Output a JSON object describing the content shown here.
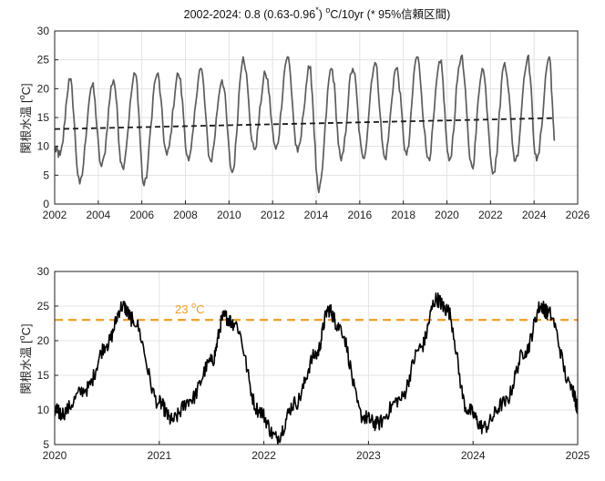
{
  "chart_data": [
    {
      "type": "line",
      "title": "2002-2024: 0.8 (0.63-0.96* ºC/10yr (* 95%信頼区間)",
      "title_parts": {
        "prefix": "2002-2024: 0.8 (0.63-0.96",
        "star": "*",
        "mid": ") ",
        "deg": "o",
        "suffix": "C/10yr (* 95%信頼区間)"
      },
      "ylabel": "関根水温 [ºC]",
      "ylabel_parts": {
        "main": "関根水温 [",
        "deg": "o",
        "end": "C]"
      },
      "xlim": [
        2002,
        2026
      ],
      "ylim": [
        0,
        30
      ],
      "xticks": [
        "2002",
        "2004",
        "2006",
        "2008",
        "2010",
        "2012",
        "2014",
        "2016",
        "2018",
        "2020",
        "2022",
        "2024",
        "2026"
      ],
      "yticks": [
        "0",
        "5",
        "10",
        "15",
        "20",
        "25",
        "30"
      ],
      "grid": true,
      "line_color": "#5c5c5c",
      "trend_color": "#1a1a1a",
      "series": [
        {
          "kind": "seasonal_extrema",
          "x": [
            2002.0,
            2002.25,
            2002.7,
            2003.15,
            2003.72,
            2004.15,
            2004.7,
            2005.1,
            2005.7,
            2006.1,
            2006.7,
            2007.15,
            2007.68,
            2008.15,
            2008.7,
            2009.15,
            2009.68,
            2010.15,
            2010.65,
            2011.15,
            2011.68,
            2012.15,
            2012.68,
            2013.15,
            2013.7,
            2014.12,
            2014.7,
            2015.15,
            2015.68,
            2016.15,
            2016.7,
            2017.15,
            2017.68,
            2018.15,
            2018.62,
            2019.15,
            2019.7,
            2020.1,
            2020.65,
            2021.15,
            2021.62,
            2022.15,
            2022.65,
            2023.15,
            2023.7,
            2024.12,
            2024.7,
            2024.95
          ],
          "y": [
            9.5,
            8.5,
            21.5,
            3.5,
            20.5,
            6.5,
            21.5,
            6.5,
            22.5,
            3.2,
            22.5,
            8.5,
            22.5,
            7.5,
            23.5,
            7.5,
            21.5,
            5.5,
            25.5,
            9.5,
            22.5,
            9.5,
            25.5,
            9.0,
            23.5,
            2.0,
            23.5,
            7.5,
            23.5,
            8.0,
            24.5,
            8.0,
            23.5,
            8.5,
            25.5,
            8.0,
            24.5,
            7.5,
            25.5,
            6.5,
            23.5,
            5.5,
            24.5,
            7.5,
            25.5,
            7.5,
            25.5,
            11.0
          ]
        },
        {
          "kind": "trend",
          "x": [
            2002.0,
            2024.9
          ],
          "y": [
            13.0,
            14.9
          ]
        }
      ]
    },
    {
      "type": "line",
      "ylabel": "関根水温 [ºC]",
      "ylabel_parts": {
        "main": "関根水温 [",
        "deg": "o",
        "end": "C]"
      },
      "xlim": [
        2020,
        2025
      ],
      "ylim": [
        5,
        30
      ],
      "xticks": [
        "2020",
        "2021",
        "2022",
        "2023",
        "2024",
        "2025"
      ],
      "yticks": [
        "5",
        "10",
        "15",
        "20",
        "25",
        "30"
      ],
      "grid": true,
      "line_color": "#000000",
      "threshold": {
        "value": 23,
        "label_num": "23 ",
        "label_deg": "o",
        "label_unit": "C",
        "color": "#f39a1e"
      },
      "series": [
        {
          "kind": "seasonal_extrema",
          "x": [
            2020.0,
            2020.06,
            2020.3,
            2020.5,
            2020.65,
            2020.75,
            2021.0,
            2021.12,
            2021.3,
            2021.5,
            2021.62,
            2021.72,
            2021.95,
            2022.12,
            2022.3,
            2022.5,
            2022.62,
            2022.72,
            2022.95,
            2023.08,
            2023.3,
            2023.5,
            2023.65,
            2023.75,
            2023.95,
            2024.1,
            2024.3,
            2024.5,
            2024.65,
            2024.72,
            2024.95,
            2025.0
          ],
          "y": [
            10.0,
            9.5,
            13.0,
            19.5,
            25.0,
            23.0,
            11.0,
            8.5,
            11.5,
            17.0,
            23.5,
            22.5,
            10.0,
            6.0,
            11.0,
            18.0,
            24.5,
            22.0,
            9.0,
            8.0,
            11.5,
            19.0,
            26.0,
            24.5,
            10.0,
            7.5,
            11.0,
            18.5,
            25.0,
            24.0,
            13.0,
            10.5
          ]
        }
      ]
    }
  ]
}
